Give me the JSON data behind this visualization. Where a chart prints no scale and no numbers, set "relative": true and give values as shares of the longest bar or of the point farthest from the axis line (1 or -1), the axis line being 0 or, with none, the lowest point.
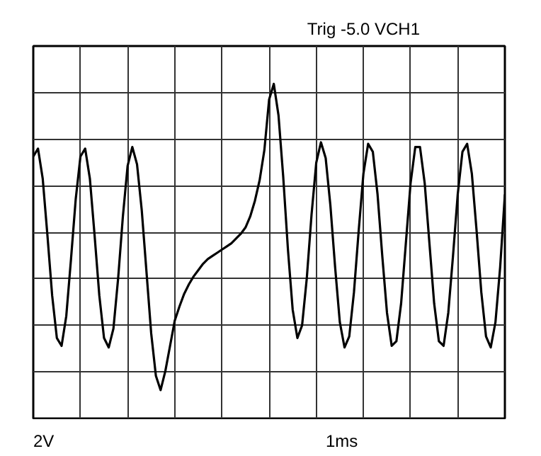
{
  "chart_data": {
    "type": "line",
    "relative": true,
    "title": "Trig    -5.0 VCH1",
    "annotations": [
      "2V",
      "1ms"
    ],
    "categories": [
      null,
      null,
      null,
      null,
      null,
      null,
      null,
      null,
      null,
      null,
      null,
      null,
      null,
      null,
      null,
      null,
      null,
      null,
      null,
      null,
      null,
      null,
      null,
      null,
      null,
      null,
      null,
      null,
      null,
      null,
      null,
      null,
      null,
      null,
      null,
      null,
      null,
      null,
      null,
      null,
      null,
      null,
      null,
      null,
      null,
      null,
      null,
      null,
      null,
      null,
      null,
      null,
      null,
      null,
      null,
      null,
      null,
      null,
      null,
      null,
      null,
      null,
      null,
      null,
      null,
      null,
      null,
      null,
      null,
      null,
      null,
      null,
      null,
      null,
      null,
      null,
      null,
      null,
      null,
      null,
      null,
      null,
      null,
      null,
      null,
      null,
      null,
      null,
      null,
      null,
      null,
      null,
      null,
      null,
      null,
      null,
      null,
      null,
      null,
      null,
      null
    ],
    "series": [
      {
        "color": "#000000",
        "values": [
          0.48,
          0.53,
          0.34,
          -0.02,
          -0.4,
          -0.67,
          -0.72,
          -0.53,
          -0.17,
          0.21,
          0.48,
          0.53,
          0.34,
          -0.02,
          -0.4,
          -0.67,
          -0.73,
          -0.61,
          -0.29,
          0.1,
          0.42,
          0.54,
          0.43,
          0.14,
          -0.25,
          -0.64,
          -0.91,
          -1.0,
          -0.88,
          -0.72,
          -0.56,
          -0.47,
          -0.39,
          -0.33,
          -0.28,
          -0.24,
          -0.2,
          -0.17,
          -0.15,
          -0.13,
          -0.11,
          -0.09,
          -0.07,
          -0.04,
          -0.01,
          0.03,
          0.1,
          0.2,
          0.33,
          0.52,
          0.84,
          0.94,
          0.74,
          0.35,
          -0.11,
          -0.49,
          -0.67,
          -0.59,
          -0.29,
          0.11,
          0.44,
          0.57,
          0.47,
          0.17,
          -0.22,
          -0.57,
          -0.73,
          -0.66,
          -0.38,
          0.01,
          0.37,
          0.56,
          0.51,
          0.24,
          -0.15,
          -0.51,
          -0.72,
          -0.69,
          -0.45,
          -0.07,
          0.31,
          0.54,
          0.54,
          0.31,
          -0.07,
          -0.45,
          -0.69,
          -0.72,
          -0.51,
          -0.15,
          0.24,
          0.51,
          0.56,
          0.37,
          0.01,
          -0.38,
          -0.66,
          -0.73,
          -0.57,
          -0.22,
          0.24
        ]
      }
    ],
    "grid": true,
    "marker": "none",
    "line_style": "solid"
  }
}
